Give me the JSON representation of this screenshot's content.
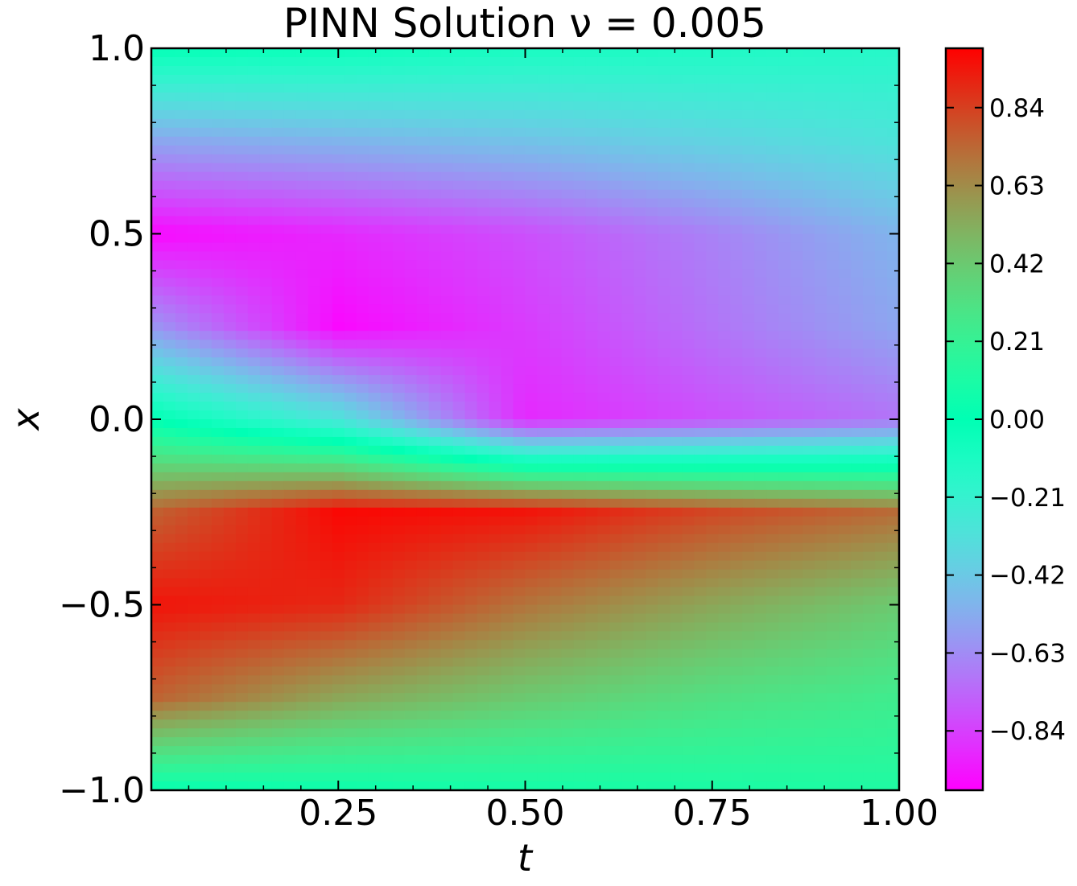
{
  "chart_data": {
    "type": "heatmap",
    "title": "PINN Solution ν = 0.005",
    "xlabel": "t",
    "ylabel": "x",
    "xlim": [
      0.0,
      1.0
    ],
    "ylim": [
      -1.0,
      1.0
    ],
    "x_ticks": [
      0.25,
      0.5,
      0.75,
      1.0
    ],
    "x_tick_labels": [
      "0.25",
      "0.50",
      "0.75",
      "1.00"
    ],
    "y_ticks": [
      1.0,
      0.5,
      0.0,
      -0.5,
      -1.0
    ],
    "y_tick_labels": [
      "1.0",
      "0.5",
      "0.0",
      "−0.5",
      "−1.0"
    ],
    "colorbar": {
      "colormap": "rainbow",
      "range": [
        -1.0,
        1.0
      ],
      "ticks": [
        0.84,
        0.63,
        0.42,
        0.21,
        0.0,
        -0.21,
        -0.42,
        -0.63,
        -0.84
      ],
      "tick_labels": [
        "0.84",
        "0.63",
        "0.42",
        "0.21",
        "0.00",
        "−0.21",
        "−0.42",
        "−0.63",
        "−0.84"
      ]
    },
    "field": {
      "description_of_values": "u(t, x) sampled on a coarse grid of the displayed field",
      "t": [
        0.0,
        0.25,
        0.5,
        0.75,
        1.0
      ],
      "x": [
        1.0,
        0.75,
        0.5,
        0.25,
        0.0,
        -0.25,
        -0.5,
        -0.75,
        -1.0
      ],
      "u": [
        [
          -0.02,
          -0.05,
          -0.1,
          -0.12,
          -0.15
        ],
        [
          -0.55,
          -0.5,
          -0.45,
          -0.38,
          -0.3
        ],
        [
          -0.98,
          -0.9,
          -0.8,
          -0.66,
          -0.5
        ],
        [
          -0.6,
          -0.98,
          -0.85,
          -0.7,
          -0.55
        ],
        [
          0.0,
          -0.3,
          -0.9,
          -0.8,
          -0.7
        ],
        [
          0.75,
          0.98,
          0.95,
          0.82,
          0.72
        ],
        [
          0.95,
          0.9,
          0.7,
          0.55,
          0.42
        ],
        [
          0.75,
          0.55,
          0.42,
          0.32,
          0.25
        ],
        [
          0.02,
          0.05,
          0.08,
          0.1,
          0.12
        ]
      ]
    }
  }
}
